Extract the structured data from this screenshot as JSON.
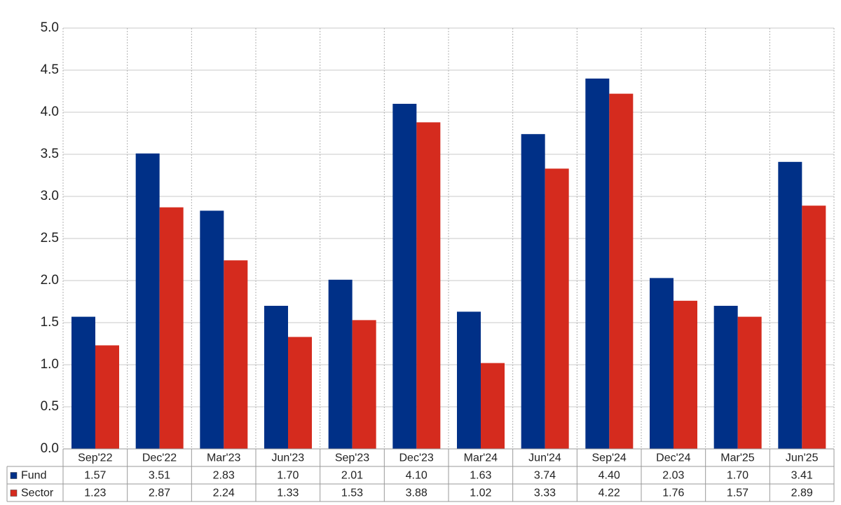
{
  "chart_data": {
    "type": "bar",
    "categories": [
      "Sep'22",
      "Dec'22",
      "Mar'23",
      "Jun'23",
      "Sep'23",
      "Dec'23",
      "Mar'24",
      "Jun'24",
      "Sep'24",
      "Dec'24",
      "Mar'25",
      "Jun'25"
    ],
    "series": [
      {
        "name": "Fund",
        "color": "#003087",
        "values": [
          1.57,
          3.51,
          2.83,
          1.7,
          2.01,
          4.1,
          1.63,
          3.74,
          4.4,
          2.03,
          1.7,
          3.41
        ],
        "value_labels": [
          "1.57",
          "3.51",
          "2.83",
          "1.70",
          "2.01",
          "4.10",
          "1.63",
          "3.74",
          "4.40",
          "2.03",
          "1.70",
          "3.41"
        ]
      },
      {
        "name": "Sector",
        "color": "#d52b1e",
        "values": [
          1.23,
          2.87,
          2.24,
          1.33,
          1.53,
          3.88,
          1.02,
          3.33,
          4.22,
          1.76,
          1.57,
          2.89
        ],
        "value_labels": [
          "1.23",
          "2.87",
          "2.24",
          "1.33",
          "1.53",
          "3.88",
          "1.02",
          "3.33",
          "4.22",
          "1.76",
          "1.57",
          "2.89"
        ]
      }
    ],
    "ylim": [
      0,
      5
    ],
    "yticks": [
      {
        "value": 0,
        "label": "0.0"
      },
      0.5,
      {
        "value": 1,
        "label": "1.0"
      },
      1.5,
      {
        "value": 2,
        "label": "2.0"
      },
      2.5,
      {
        "value": 3,
        "label": "3.0"
      },
      3.5,
      {
        "value": 4,
        "label": "4.0"
      },
      4.5,
      {
        "value": 5,
        "label": "5.0"
      }
    ],
    "grid": true
  }
}
